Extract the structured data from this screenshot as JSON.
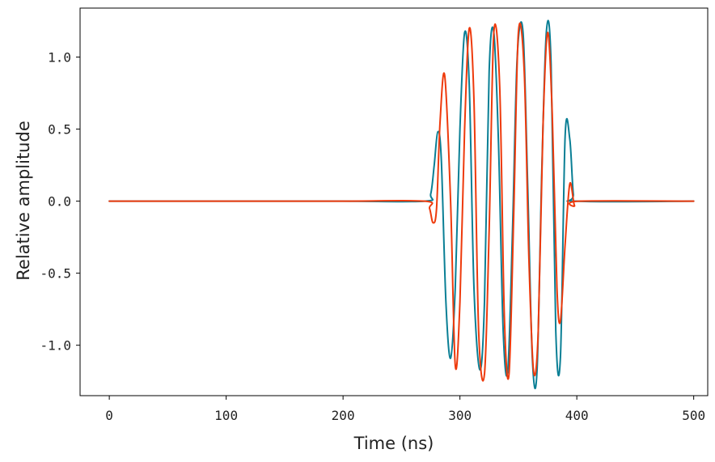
{
  "chart_data": {
    "type": "line",
    "title": "",
    "xlabel": "Time (ns)",
    "ylabel": "Relative amplitude",
    "xlim": [
      -25,
      512
    ],
    "ylim": [
      -1.35,
      1.34
    ],
    "x_ticks": [
      0,
      100,
      200,
      300,
      400,
      500
    ],
    "x_tick_labels": [
      "0",
      "100",
      "200",
      "300",
      "400",
      "500"
    ],
    "y_ticks": [
      1.0,
      0.5,
      0.0,
      -0.5,
      -1.0
    ],
    "y_tick_labels": [
      "1.0",
      "0.5",
      "0.0",
      "-0.5",
      "-1.0"
    ],
    "grid": false,
    "legend": "none",
    "series": [
      {
        "color": "#0a7f95",
        "x": [
          0,
          100,
          200,
          270,
          275,
          278,
          281,
          284,
          288,
          292,
          296,
          300,
          304,
          308,
          312,
          317,
          321,
          325,
          329,
          333,
          337,
          341,
          345,
          349,
          354,
          358,
          362,
          366,
          370,
          374,
          378,
          382,
          386,
          390,
          394,
          397,
          400,
          500
        ],
        "y": [
          0,
          0,
          0,
          0,
          0.05,
          0.25,
          0.48,
          0.3,
          -0.7,
          -1.09,
          -0.6,
          0.5,
          1.17,
          0.8,
          -0.6,
          -1.17,
          -0.7,
          0.9,
          1.17,
          0.4,
          -0.9,
          -1.17,
          -0.2,
          1.0,
          1.17,
          0.1,
          -1.1,
          -1.17,
          0.2,
          1.18,
          0.95,
          -0.9,
          -1.08,
          0.45,
          0.43,
          0.05,
          0,
          0
        ]
      },
      {
        "color": "#ee3a0c",
        "x": [
          0,
          100,
          200,
          270,
          274,
          277,
          280,
          283,
          287,
          292,
          296,
          300,
          304,
          308,
          312,
          316,
          321,
          325,
          329,
          334,
          338,
          342,
          346,
          350,
          355,
          359,
          363,
          367,
          371,
          375,
          379,
          383,
          386,
          390,
          394,
          398,
          402,
          500
        ],
        "y": [
          0,
          0,
          0,
          0,
          -0.05,
          -0.15,
          -0.05,
          0.55,
          0.87,
          0.0,
          -1.14,
          -0.7,
          0.5,
          1.2,
          0.7,
          -0.9,
          -1.2,
          -0.2,
          1.17,
          0.8,
          -0.8,
          -1.2,
          -0.1,
          1.17,
          0.9,
          -0.4,
          -1.18,
          -0.9,
          0.5,
          1.17,
          0.6,
          -0.6,
          -0.83,
          -0.3,
          0.12,
          -0.03,
          0,
          0
        ]
      }
    ]
  }
}
